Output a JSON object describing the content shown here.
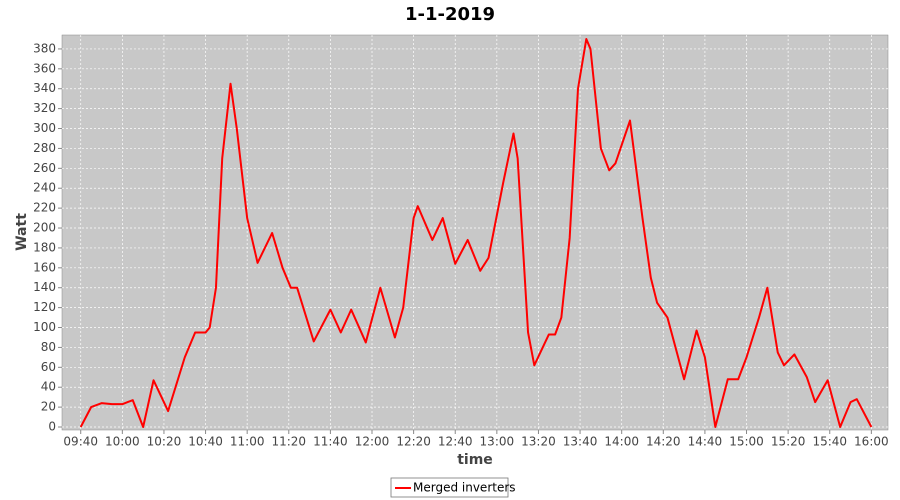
{
  "chart_data": {
    "type": "line",
    "title": "1-1-2019",
    "xlabel": "time",
    "ylabel": "Watt",
    "x": [
      "09:40",
      "09:45",
      "09:50",
      "09:55",
      "10:00",
      "10:05",
      "10:10",
      "10:15",
      "10:22",
      "10:30",
      "10:35",
      "10:40",
      "10:42",
      "10:45",
      "10:48",
      "10:52",
      "10:55",
      "11:00",
      "11:05",
      "11:12",
      "11:17",
      "11:21",
      "11:24",
      "11:32",
      "11:40",
      "11:45",
      "11:50",
      "11:57",
      "12:04",
      "12:11",
      "12:15",
      "12:20",
      "12:22",
      "12:29",
      "12:34",
      "12:40",
      "12:46",
      "12:52",
      "12:56",
      "13:03",
      "13:08",
      "13:10",
      "13:15",
      "13:18",
      "13:25",
      "13:28",
      "13:31",
      "13:35",
      "13:39",
      "13:43",
      "13:45",
      "13:50",
      "13:54",
      "13:57",
      "14:04",
      "14:10",
      "14:14",
      "14:17",
      "14:22",
      "14:30",
      "14:36",
      "14:40",
      "14:45",
      "14:51",
      "14:56",
      "15:00",
      "15:06",
      "15:10",
      "15:15",
      "15:18",
      "15:23",
      "15:29",
      "15:33",
      "15:39",
      "15:45",
      "15:50",
      "15:53",
      "16:00"
    ],
    "series": [
      {
        "name": "Merged inverters",
        "color": "#ff0000",
        "values": [
          0,
          20,
          24,
          23,
          23,
          27,
          0,
          47,
          16,
          70,
          95,
          95,
          100,
          140,
          270,
          345,
          300,
          210,
          165,
          195,
          160,
          140,
          140,
          86,
          118,
          95,
          118,
          85,
          140,
          90,
          120,
          210,
          222,
          188,
          210,
          164,
          188,
          157,
          170,
          245,
          295,
          270,
          95,
          62,
          93,
          93,
          110,
          190,
          340,
          390,
          380,
          280,
          258,
          265,
          308,
          210,
          150,
          125,
          110,
          48,
          97,
          70,
          0,
          48,
          48,
          70,
          110,
          140,
          75,
          62,
          73,
          50,
          25,
          47,
          0,
          25,
          28,
          0
        ]
      }
    ],
    "xlim": [
      "09:31",
      "16:08"
    ],
    "xticks": [
      "09:40",
      "10:00",
      "10:20",
      "10:40",
      "11:00",
      "11:20",
      "11:40",
      "12:00",
      "12:20",
      "12:40",
      "13:00",
      "13:20",
      "13:40",
      "14:00",
      "14:20",
      "14:40",
      "15:00",
      "15:20",
      "15:40",
      "16:00"
    ],
    "ylim": [
      -3,
      394
    ],
    "yticks": [
      0,
      20,
      40,
      60,
      80,
      100,
      120,
      140,
      160,
      180,
      200,
      220,
      240,
      260,
      280,
      300,
      320,
      340,
      360,
      380
    ],
    "grid": true,
    "legend": "bottom"
  }
}
